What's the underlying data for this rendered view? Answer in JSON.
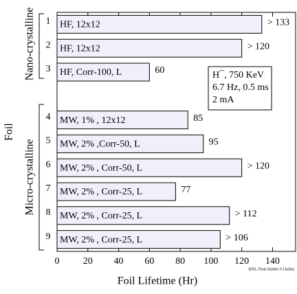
{
  "chart_data": {
    "type": "barh",
    "xlabel": "Foil Lifetime (Hr)",
    "ylabel": "Foil",
    "group_labels": [
      "Nano-crystalline",
      "Micro-crystalline"
    ],
    "categories": [
      "1",
      "2",
      "3",
      null,
      "4",
      "5",
      "6",
      "7",
      "8",
      "9"
    ],
    "bar_labels": [
      "HF, 12x12",
      "HF, 12x12",
      "HF, Corr-100, L",
      null,
      "MW, 1% , 12x12",
      "MW, 2% ,Corr-50, L",
      "MW, 2% , Corr-50, L",
      "MW, 2% , Corr-25, L",
      "MW, 2% , Corr-25, L",
      "MW, 2% , Corr-25, L"
    ],
    "values": [
      133,
      120,
      60,
      null,
      85,
      95,
      120,
      77,
      112,
      106
    ],
    "value_labels": [
      "> 133",
      "> 120",
      "60",
      null,
      "85",
      "95",
      "> 120",
      "77",
      "> 112",
      "> 106"
    ],
    "color": "#f0f0fa",
    "xlim": [
      0,
      155
    ],
    "xticks": [
      0,
      20,
      40,
      60,
      80,
      100,
      120,
      140
    ],
    "legend_text": [
      "H¯, 750 KeV",
      "6.7 Hz, 0.5 ms",
      "2 mA"
    ],
    "footnote": "BNL.Tests.Summ.V3.kdata"
  }
}
